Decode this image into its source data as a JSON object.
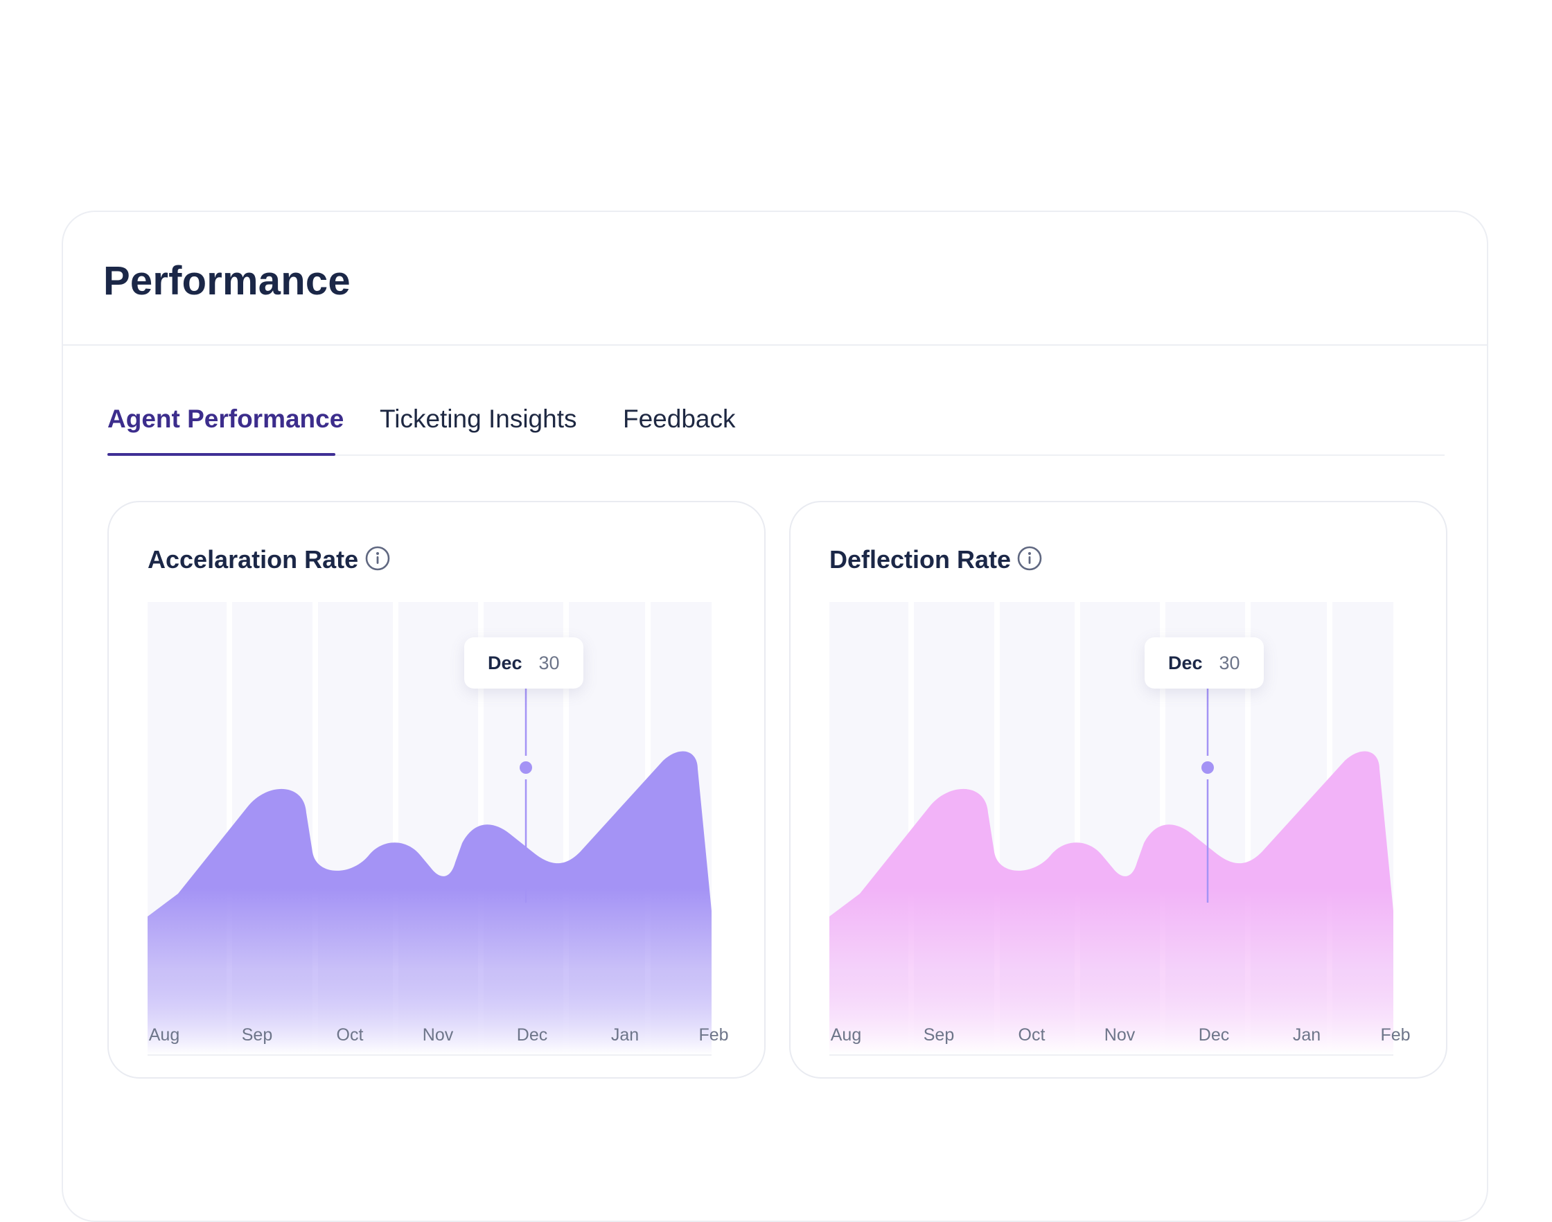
{
  "page": {
    "title": "Performance"
  },
  "tabs": [
    {
      "label": "Agent Performance",
      "active": true
    },
    {
      "label": "Ticketing Insights",
      "active": false
    },
    {
      "label": "Feedback",
      "active": false
    }
  ],
  "colors": {
    "accent": "#3f2f95",
    "purple_series": "#a493f5",
    "pink_series": "#f2b3f8",
    "marker": "#a493f5"
  },
  "chart_data": [
    {
      "type": "area",
      "title": "Accelaration Rate",
      "info_icon": "info-icon",
      "x": [
        "Aug",
        "Sep",
        "Oct",
        "Nov",
        "Dec",
        "Jan",
        "Feb"
      ],
      "grid": "vertical bands",
      "tooltip": {
        "month": "Dec",
        "value": "30"
      }
    },
    {
      "type": "area",
      "title": "Deflection Rate",
      "info_icon": "info-icon",
      "x": [
        "Aug",
        "Sep",
        "Oct",
        "Nov",
        "Dec",
        "Jan",
        "Feb"
      ],
      "grid": "vertical bands",
      "tooltip": {
        "month": "Dec",
        "value": "30"
      }
    }
  ]
}
